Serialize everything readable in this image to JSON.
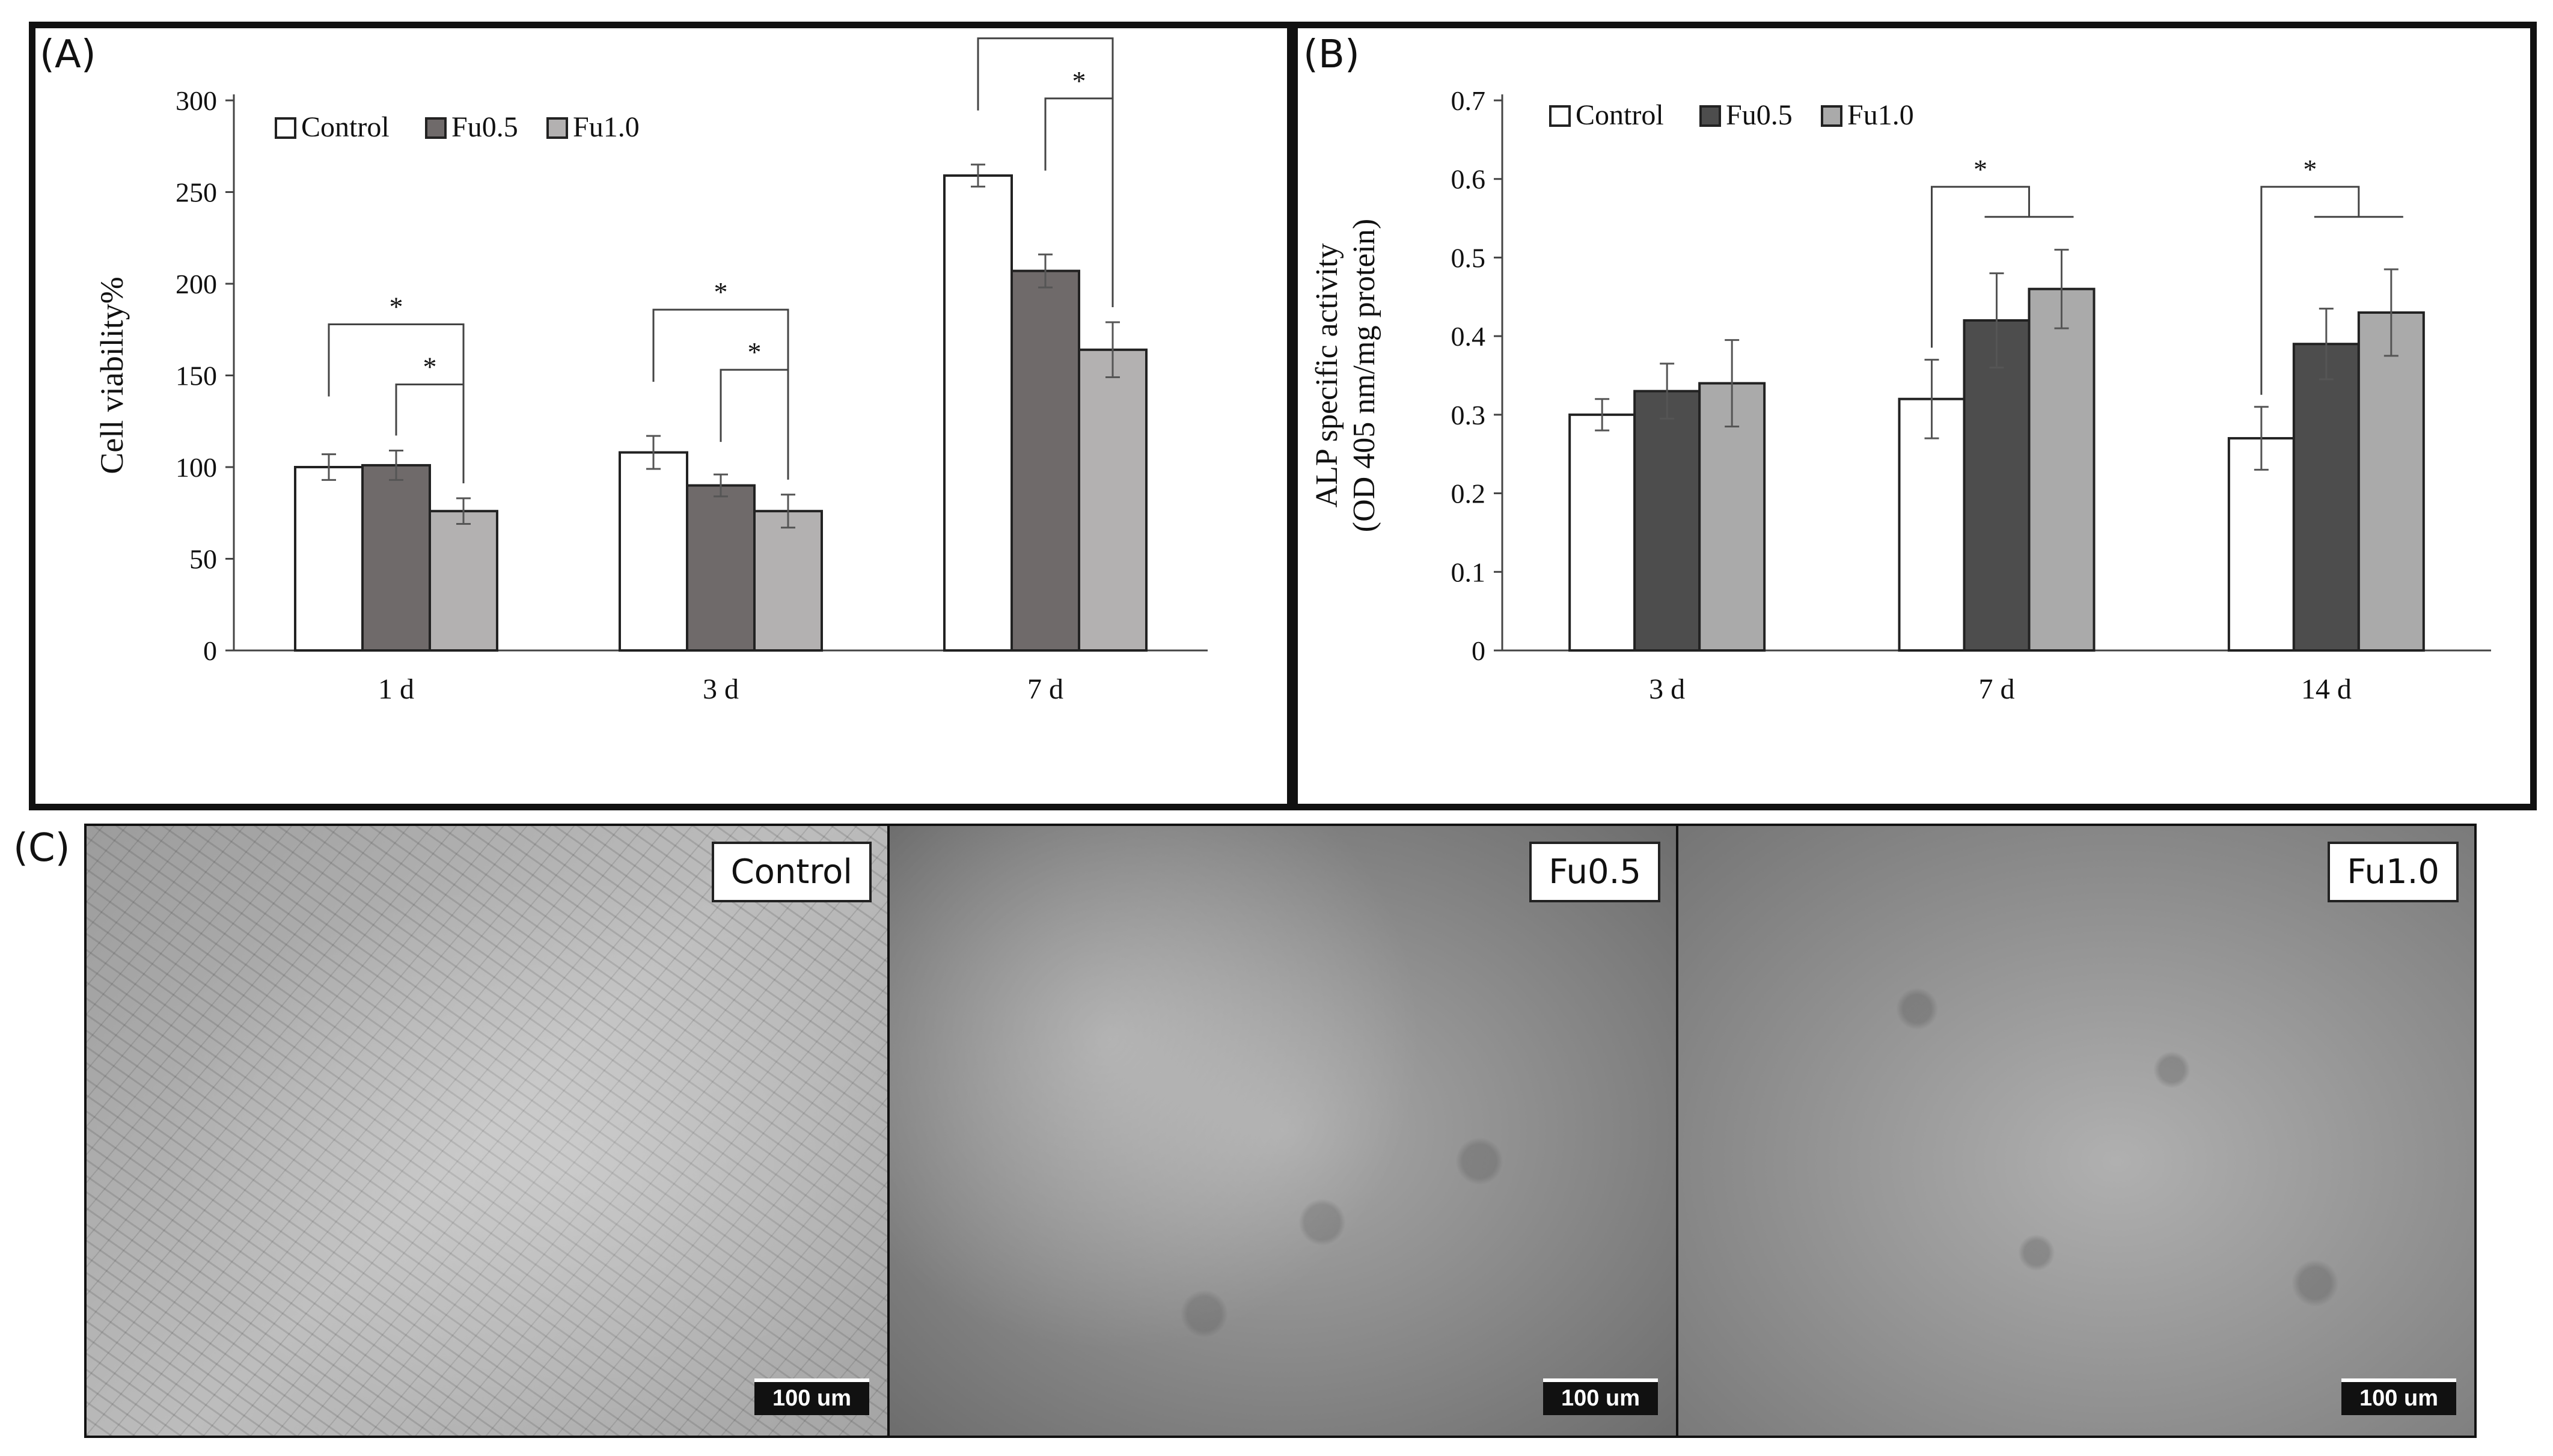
{
  "panels": {
    "a_letter": "(A)",
    "b_letter": "(B)",
    "c_letter": "(C)"
  },
  "chart_data": [
    {
      "type": "bar",
      "panel": "(A)",
      "ylabel": "Cell viability%",
      "xlabel": "",
      "categories": [
        "1 d",
        "3 d",
        "7 d"
      ],
      "ylim": [
        0,
        300
      ],
      "yticks": [
        0,
        50,
        100,
        150,
        200,
        250,
        300
      ],
      "series": [
        {
          "name": "Control",
          "color": "#ffffff",
          "values": [
            100,
            108,
            259
          ],
          "errors": [
            7,
            9,
            6
          ]
        },
        {
          "name": "Fu0.5",
          "color": "#6f6a6a",
          "values": [
            101,
            90,
            207
          ],
          "errors": [
            8,
            6,
            9
          ]
        },
        {
          "name": "Fu1.0",
          "color": "#b3b1b1",
          "values": [
            76,
            76,
            164
          ],
          "errors": [
            7,
            9,
            15
          ]
        }
      ],
      "legend_position": "top-left",
      "grid": false,
      "significance": [
        {
          "category": "1 d",
          "compare": [
            "Control",
            "Fu1.0"
          ],
          "label": "*"
        },
        {
          "category": "1 d",
          "compare": [
            "Fu0.5",
            "Fu1.0"
          ],
          "label": "*"
        },
        {
          "category": "3 d",
          "compare": [
            "Control",
            "Fu1.0"
          ],
          "label": "*"
        },
        {
          "category": "3 d",
          "compare": [
            "Fu0.5",
            "Fu1.0"
          ],
          "label": "*"
        },
        {
          "category": "7 d",
          "compare": [
            "Control",
            "Fu1.0"
          ],
          "label": "**"
        },
        {
          "category": "7 d",
          "compare": [
            "Fu0.5",
            "Fu1.0"
          ],
          "label": "*"
        }
      ]
    },
    {
      "type": "bar",
      "panel": "(B)",
      "ylabel": "ALP specific activity",
      "ylabel2": "(OD 405 nm/mg protein)",
      "xlabel": "",
      "categories": [
        "3 d",
        "7 d",
        "14 d"
      ],
      "ylim": [
        0,
        0.7
      ],
      "yticks": [
        0,
        0.1,
        0.2,
        0.3,
        0.4,
        0.5,
        0.6,
        0.7
      ],
      "series": [
        {
          "name": "Control",
          "color": "#ffffff",
          "values": [
            0.3,
            0.32,
            0.27
          ],
          "errors": [
            0.02,
            0.05,
            0.04
          ]
        },
        {
          "name": "Fu0.5",
          "color": "#4d4d4d",
          "values": [
            0.33,
            0.42,
            0.39
          ],
          "errors": [
            0.035,
            0.06,
            0.045
          ]
        },
        {
          "name": "Fu1.0",
          "color": "#aaaaaa",
          "values": [
            0.34,
            0.46,
            0.43
          ],
          "errors": [
            0.055,
            0.05,
            0.055
          ]
        }
      ],
      "legend_position": "top-left",
      "grid": false,
      "significance": [
        {
          "category": "7 d",
          "compare": [
            "Control",
            "Fu0.5+Fu1.0"
          ],
          "label": "*"
        },
        {
          "category": "14 d",
          "compare": [
            "Control",
            "Fu0.5+Fu1.0"
          ],
          "label": "*"
        }
      ]
    }
  ],
  "micrographs": [
    {
      "label": "Control",
      "scale": "100 um"
    },
    {
      "label": "Fu0.5",
      "scale": "100 um"
    },
    {
      "label": "Fu1.0",
      "scale": "100 um"
    }
  ]
}
